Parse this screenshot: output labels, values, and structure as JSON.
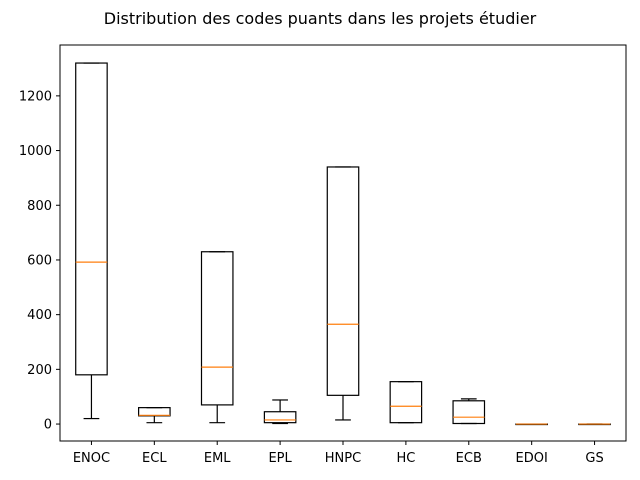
{
  "chart_data": {
    "type": "box",
    "title": "Distribution des codes puants dans les projets étudier",
    "xlabel": "",
    "ylabel": "",
    "categories": [
      "ENOC",
      "ECL",
      "EML",
      "EPL",
      "HNPC",
      "HC",
      "ECB",
      "EDOI",
      "GS"
    ],
    "boxes": [
      {
        "whislo": 20,
        "q1": 180,
        "med": 592,
        "q3": 1320,
        "whishi": 1320
      },
      {
        "whislo": 5,
        "q1": 30,
        "med": 32,
        "q3": 60,
        "whishi": 60
      },
      {
        "whislo": 5,
        "q1": 70,
        "med": 208,
        "q3": 630,
        "whishi": 630
      },
      {
        "whislo": 2,
        "q1": 5,
        "med": 15,
        "q3": 45,
        "whishi": 88
      },
      {
        "whislo": 15,
        "q1": 105,
        "med": 365,
        "q3": 940,
        "whishi": 940
      },
      {
        "whislo": 5,
        "q1": 5,
        "med": 65,
        "q3": 155,
        "whishi": 155
      },
      {
        "whislo": 2,
        "q1": 2,
        "med": 25,
        "q3": 85,
        "whishi": 92
      },
      {
        "whislo": 0,
        "q1": 0,
        "med": 0,
        "q3": 0,
        "whishi": 0
      },
      {
        "whislo": 0,
        "q1": 0,
        "med": 0,
        "q3": 0,
        "whishi": 0
      }
    ],
    "yticks": [
      0,
      200,
      400,
      600,
      800,
      1000,
      1200
    ],
    "ylim": [
      -62,
      1386
    ],
    "grid": false,
    "colors": {
      "box": "#000000",
      "median": "#ff7f0e",
      "axes": "#000000"
    }
  }
}
